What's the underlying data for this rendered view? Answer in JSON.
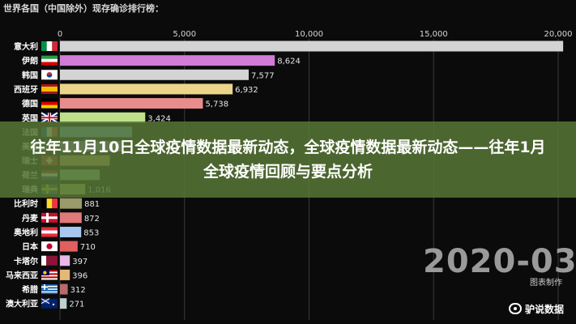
{
  "chart_data": {
    "type": "bar",
    "orientation": "horizontal",
    "title": "世界各国（中国除外）现存确诊排行榜：",
    "xlim": [
      0,
      20000
    ],
    "xticks": [
      0,
      5000,
      10000,
      15000,
      20000
    ],
    "xtick_labels": [
      "0",
      "5,000",
      "10,000",
      "15,000",
      "20,000"
    ],
    "grid": true,
    "categories": [
      "意大利",
      "伊朗",
      "韩国",
      "西班牙",
      "德国",
      "英国",
      "法国",
      "美国",
      "瑞士",
      "荷兰",
      "瑞典",
      "比利时",
      "丹麦",
      "奥地利",
      "日本",
      "卡塔尔",
      "马来西亚",
      "希腊",
      "澳大利亚"
    ],
    "values": [
      20603,
      8624,
      7577,
      6932,
      5738,
      3424,
      2900,
      2500,
      2000,
      1600,
      1016,
      881,
      872,
      853,
      710,
      397,
      396,
      312,
      271
    ],
    "value_labels": [
      "",
      "8,624",
      "7,577",
      "6,932",
      "5,738",
      "3,424",
      "",
      "",
      "",
      "",
      "1,016",
      "881",
      "872",
      "853",
      "710",
      "397",
      "396",
      "312",
      "271"
    ],
    "colors": [
      "#d3d3d3",
      "#d17ad6",
      "#d4d4d4",
      "#ead58a",
      "#e88c8c",
      "#bfe08a",
      "#7fb9e8",
      "#9a7ad6",
      "#e0b070",
      "#8fd19e",
      "#b8c95a",
      "#9a9a6a",
      "#e07a7a",
      "#a8c7f0",
      "#e06060",
      "#e8b8e8",
      "#e6b878",
      "#b86a6a",
      "#c0cfcf"
    ],
    "date_label": "2020-03-",
    "credit": "图表制作"
  },
  "flags": [
    "italy",
    "iran",
    "korea",
    "spain",
    "germany",
    "uk",
    "france",
    "usa",
    "switzerland",
    "netherlands",
    "sweden",
    "belgium",
    "denmark",
    "austria",
    "japan",
    "qatar",
    "malaysia",
    "greece",
    "australia"
  ],
  "banner": {
    "title": "往年11月10日全球疫情数据最新动态，全球疫情数据最新动态——往年1月全球疫情回顾与要点分析"
  },
  "watermark": {
    "text": "驴说数据",
    "icon": "weibo-icon"
  }
}
